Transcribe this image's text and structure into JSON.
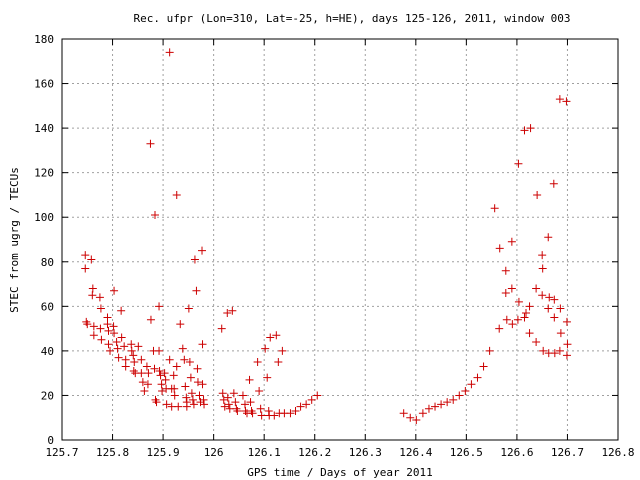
{
  "chart_data": {
    "type": "scatter",
    "title": "Rec. ufpr (Lon=310, Lat=-25, h=HE), days 125-126, 2011, window 003",
    "xlabel": "GPS time / Days of year 2011",
    "ylabel": "STEC from ugrg / TECUs",
    "xlim": [
      125.7,
      126.8
    ],
    "ylim": [
      0,
      180
    ],
    "xticks": [
      125.7,
      125.8,
      125.9,
      126.0,
      126.1,
      126.2,
      126.3,
      126.4,
      126.5,
      126.6,
      126.7,
      126.8
    ],
    "xtick_labels": [
      "125.7",
      "125.8",
      "125.9",
      "126",
      "126.1",
      "126.2",
      "126.3",
      "126.4",
      "126.5",
      "126.6",
      "126.7",
      "126.8"
    ],
    "yticks": [
      0,
      20,
      40,
      60,
      80,
      100,
      120,
      140,
      160,
      180
    ],
    "ytick_labels": [
      "0",
      "20",
      "40",
      "60",
      "80",
      "100",
      "120",
      "140",
      "160",
      "180"
    ],
    "grid": true,
    "marker": "+",
    "marker_color": "#cc0000",
    "points": [
      [
        125.746,
        83
      ],
      [
        125.746,
        77
      ],
      [
        125.748,
        53
      ],
      [
        125.75,
        52
      ],
      [
        125.758,
        81
      ],
      [
        125.761,
        68
      ],
      [
        125.76,
        65
      ],
      [
        125.763,
        51
      ],
      [
        125.763,
        47
      ],
      [
        125.775,
        64
      ],
      [
        125.777,
        59
      ],
      [
        125.776,
        50
      ],
      [
        125.778,
        45
      ],
      [
        125.79,
        55
      ],
      [
        125.79,
        52
      ],
      [
        125.792,
        49
      ],
      [
        125.792,
        43
      ],
      [
        125.795,
        40
      ],
      [
        125.803,
        67
      ],
      [
        125.802,
        51
      ],
      [
        125.803,
        48
      ],
      [
        125.808,
        44
      ],
      [
        125.81,
        41
      ],
      [
        125.812,
        37
      ],
      [
        125.817,
        58
      ],
      [
        125.818,
        46
      ],
      [
        125.823,
        42
      ],
      [
        125.826,
        36
      ],
      [
        125.826,
        33
      ],
      [
        125.837,
        43
      ],
      [
        125.838,
        40
      ],
      [
        125.841,
        38
      ],
      [
        125.843,
        35
      ],
      [
        125.842,
        31
      ],
      [
        125.845,
        30
      ],
      [
        125.851,
        42
      ],
      [
        125.857,
        36
      ],
      [
        125.857,
        30
      ],
      [
        125.86,
        26
      ],
      [
        125.863,
        22
      ],
      [
        125.868,
        33
      ],
      [
        125.871,
        30
      ],
      [
        125.87,
        25
      ],
      [
        125.875,
        133
      ],
      [
        125.876,
        54
      ],
      [
        125.884,
        101
      ],
      [
        125.881,
        40
      ],
      [
        125.883,
        32
      ],
      [
        125.885,
        18
      ],
      [
        125.887,
        17
      ],
      [
        125.892,
        60
      ],
      [
        125.892,
        40
      ],
      [
        125.893,
        31
      ],
      [
        125.895,
        29
      ],
      [
        125.897,
        25
      ],
      [
        125.898,
        22
      ],
      [
        125.903,
        30
      ],
      [
        125.905,
        27
      ],
      [
        125.906,
        23
      ],
      [
        125.907,
        16
      ],
      [
        125.913,
        174
      ],
      [
        125.913,
        36
      ],
      [
        125.917,
        23
      ],
      [
        125.917,
        15
      ],
      [
        125.921,
        29
      ],
      [
        125.922,
        23
      ],
      [
        125.923,
        20
      ],
      [
        125.927,
        110
      ],
      [
        125.927,
        33
      ],
      [
        125.93,
        15
      ],
      [
        125.934,
        52
      ],
      [
        125.939,
        41
      ],
      [
        125.942,
        36
      ],
      [
        125.944,
        24
      ],
      [
        125.946,
        19
      ],
      [
        125.947,
        17
      ],
      [
        125.947,
        15
      ],
      [
        125.951,
        59
      ],
      [
        125.953,
        35
      ],
      [
        125.955,
        28
      ],
      [
        125.957,
        21
      ],
      [
        125.959,
        18
      ],
      [
        125.961,
        16
      ],
      [
        125.963,
        81
      ],
      [
        125.966,
        67
      ],
      [
        125.968,
        32
      ],
      [
        125.969,
        26
      ],
      [
        125.972,
        20
      ],
      [
        125.974,
        17
      ],
      [
        125.977,
        85
      ],
      [
        125.978,
        43
      ],
      [
        125.978,
        25
      ],
      [
        125.98,
        18
      ],
      [
        125.981,
        16
      ],
      [
        126.016,
        50
      ],
      [
        126.018,
        21
      ],
      [
        126.02,
        18
      ],
      [
        126.022,
        15
      ],
      [
        126.027,
        57
      ],
      [
        126.028,
        19
      ],
      [
        126.03,
        16
      ],
      [
        126.032,
        14
      ],
      [
        126.037,
        58
      ],
      [
        126.04,
        21
      ],
      [
        126.043,
        17
      ],
      [
        126.045,
        14
      ],
      [
        126.047,
        13
      ],
      [
        126.058,
        20
      ],
      [
        126.062,
        16
      ],
      [
        126.063,
        13
      ],
      [
        126.066,
        12
      ],
      [
        126.071,
        27
      ],
      [
        126.073,
        17
      ],
      [
        126.075,
        13
      ],
      [
        126.077,
        12
      ],
      [
        126.087,
        35
      ],
      [
        126.09,
        22
      ],
      [
        126.093,
        14
      ],
      [
        126.095,
        11
      ],
      [
        126.102,
        41
      ],
      [
        126.106,
        28
      ],
      [
        126.109,
        13
      ],
      [
        126.11,
        11
      ],
      [
        126.112,
        46
      ],
      [
        126.12,
        11
      ],
      [
        126.124,
        47
      ],
      [
        126.128,
        35
      ],
      [
        126.13,
        12
      ],
      [
        126.136,
        40
      ],
      [
        126.14,
        12
      ],
      [
        126.152,
        12
      ],
      [
        126.162,
        13
      ],
      [
        126.172,
        15
      ],
      [
        126.183,
        16
      ],
      [
        126.194,
        18
      ],
      [
        126.205,
        20
      ],
      [
        126.376,
        12
      ],
      [
        126.389,
        10
      ],
      [
        126.401,
        9
      ],
      [
        126.414,
        12
      ],
      [
        126.426,
        14
      ],
      [
        126.438,
        15
      ],
      [
        126.45,
        16
      ],
      [
        126.462,
        17
      ],
      [
        126.474,
        18
      ],
      [
        126.486,
        20
      ],
      [
        126.498,
        22
      ],
      [
        126.51,
        25
      ],
      [
        126.522,
        28
      ],
      [
        126.534,
        33
      ],
      [
        126.546,
        40
      ],
      [
        126.556,
        104
      ],
      [
        126.566,
        86
      ],
      [
        126.565,
        50
      ],
      [
        126.578,
        76
      ],
      [
        126.578,
        66
      ],
      [
        126.58,
        54
      ],
      [
        126.59,
        89
      ],
      [
        126.59,
        68
      ],
      [
        126.591,
        52
      ],
      [
        126.603,
        124
      ],
      [
        126.604,
        62
      ],
      [
        126.602,
        54
      ],
      [
        126.615,
        139
      ],
      [
        126.618,
        57
      ],
      [
        126.615,
        55
      ],
      [
        126.627,
        140
      ],
      [
        126.625,
        60
      ],
      [
        126.625,
        48
      ],
      [
        126.64,
        110
      ],
      [
        126.638,
        68
      ],
      [
        126.638,
        44
      ],
      [
        126.65,
        83
      ],
      [
        126.651,
        77
      ],
      [
        126.65,
        65
      ],
      [
        126.652,
        40
      ],
      [
        126.662,
        91
      ],
      [
        126.664,
        64
      ],
      [
        126.662,
        59
      ],
      [
        126.663,
        39
      ],
      [
        126.673,
        115
      ],
      [
        126.674,
        63
      ],
      [
        126.674,
        55
      ],
      [
        126.675,
        39
      ],
      [
        126.685,
        153
      ],
      [
        126.686,
        59
      ],
      [
        126.687,
        48
      ],
      [
        126.685,
        40
      ],
      [
        126.698,
        152
      ],
      [
        126.699,
        53
      ],
      [
        126.7,
        43
      ],
      [
        126.699,
        38
      ]
    ]
  }
}
